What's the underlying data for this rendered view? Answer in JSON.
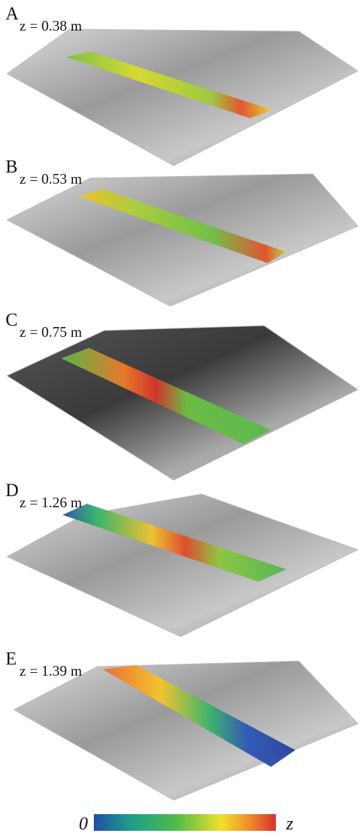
{
  "panels": [
    {
      "letter": "A",
      "label": "z = 0.38 m"
    },
    {
      "letter": "B",
      "label": "z = 0.53 m"
    },
    {
      "letter": "C",
      "label": "z = 0.75 m"
    },
    {
      "letter": "D",
      "label": "z = 1.26 m"
    },
    {
      "letter": "E",
      "label": "z = 1.39 m"
    }
  ],
  "colorbar": {
    "min_label": "0",
    "max_label": "z"
  }
}
